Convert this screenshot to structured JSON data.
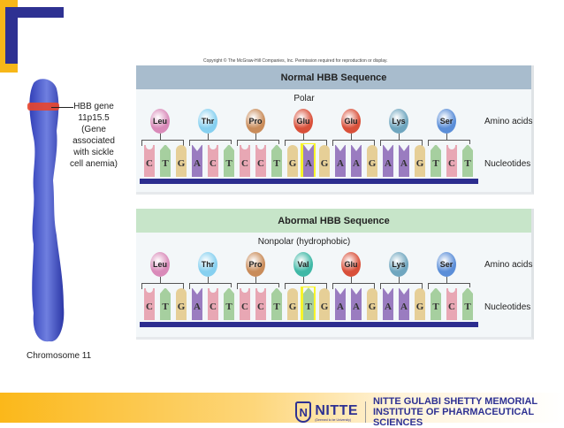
{
  "copyright": "Copyright © The McGraw-Hill Companies, Inc. Permission required for reproduction or display.",
  "chromosome": {
    "gene_label_lines": [
      "HBB gene",
      "11p15.5",
      "(Gene associated",
      "with sickle",
      "cell anemia)"
    ],
    "caption": "Chromosome 11"
  },
  "row_labels": {
    "amino_acids": "Amino acids",
    "nucleotides": "Nucleotides"
  },
  "normal": {
    "title": "Normal HBB Sequence",
    "polarity": "Polar",
    "amino_acids": [
      {
        "name": "Leu",
        "color": "#d98ab9"
      },
      {
        "name": "Thr",
        "color": "#86d0f0"
      },
      {
        "name": "Pro",
        "color": "#c98c5a"
      },
      {
        "name": "Glu",
        "color": "#d9503a"
      },
      {
        "name": "Glu",
        "color": "#d9503a"
      },
      {
        "name": "Lys",
        "color": "#6fa6bf"
      },
      {
        "name": "Ser",
        "color": "#5b8ed8"
      }
    ],
    "nucleotides": [
      "C",
      "T",
      "G",
      "A",
      "C",
      "T",
      "C",
      "C",
      "T",
      "G",
      "A",
      "G",
      "A",
      "A",
      "G",
      "A",
      "A",
      "G",
      "T",
      "C",
      "T"
    ],
    "highlight_index": 10
  },
  "abnormal": {
    "title": "Abormal HBB Sequence",
    "polarity": "Nonpolar (hydrophobic)",
    "amino_acids": [
      {
        "name": "Leu",
        "color": "#d98ab9"
      },
      {
        "name": "Thr",
        "color": "#86d0f0"
      },
      {
        "name": "Pro",
        "color": "#c98c5a"
      },
      {
        "name": "Val",
        "color": "#3fb8a6"
      },
      {
        "name": "Glu",
        "color": "#d9503a"
      },
      {
        "name": "Lys",
        "color": "#6fa6bf"
      },
      {
        "name": "Ser",
        "color": "#5b8ed8"
      }
    ],
    "nucleotides": [
      "C",
      "T",
      "G",
      "A",
      "C",
      "T",
      "C",
      "C",
      "T",
      "G",
      "T",
      "G",
      "A",
      "A",
      "G",
      "A",
      "A",
      "G",
      "T",
      "C",
      "T"
    ],
    "highlight_index": 10
  },
  "footer": {
    "logo_mark": "N",
    "logo_name": "NITTE",
    "logo_sub": "(Deemed to be University)",
    "institution_line1": "NITTE GULABI SHETTY MEMORIAL",
    "institution_line2": "INSTITUTE OF PHARMACEUTICAL SCIENCES"
  },
  "colors": {
    "accent_blue": "#2e3192",
    "accent_yellow": "#f7b718",
    "highlight": "#f7f42a"
  }
}
